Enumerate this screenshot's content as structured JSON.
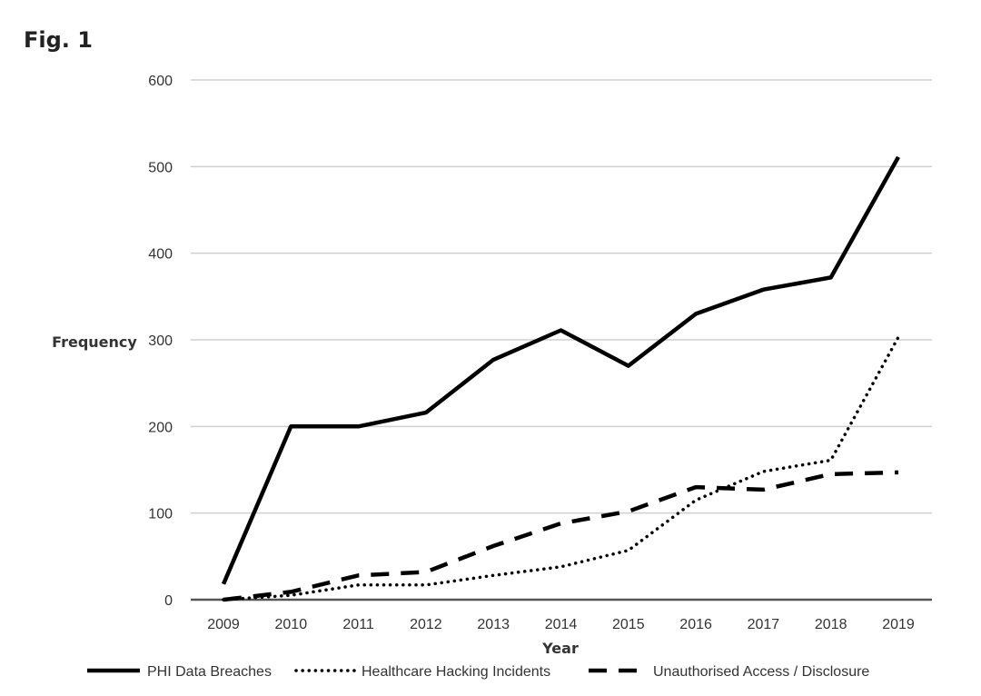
{
  "figure": {
    "label": "Fig. 1"
  },
  "chart_data": {
    "type": "line",
    "title": "",
    "xlabel": "Year",
    "ylabel": "Frequency",
    "x": [
      "2009",
      "2010",
      "2011",
      "2012",
      "2013",
      "2014",
      "2015",
      "2016",
      "2017",
      "2018",
      "2019"
    ],
    "ylim": [
      0,
      600
    ],
    "yticks": [
      0,
      100,
      200,
      300,
      400,
      500,
      600
    ],
    "grid": "horizontal",
    "legend_position": "bottom",
    "series": [
      {
        "name": "PHI Data Breaches",
        "style": "solid",
        "values": [
          18,
          200,
          200,
          216,
          277,
          311,
          270,
          330,
          358,
          372,
          511
        ]
      },
      {
        "name": "Healthcare Hacking Incidents",
        "style": "dotted",
        "values": [
          0,
          5,
          17,
          17,
          28,
          38,
          57,
          115,
          148,
          161,
          303
        ]
      },
      {
        "name": "Unauthorised Access / Disclosure",
        "style": "dashed",
        "values": [
          0,
          9,
          28,
          32,
          62,
          88,
          102,
          130,
          127,
          145,
          147
        ]
      }
    ]
  }
}
